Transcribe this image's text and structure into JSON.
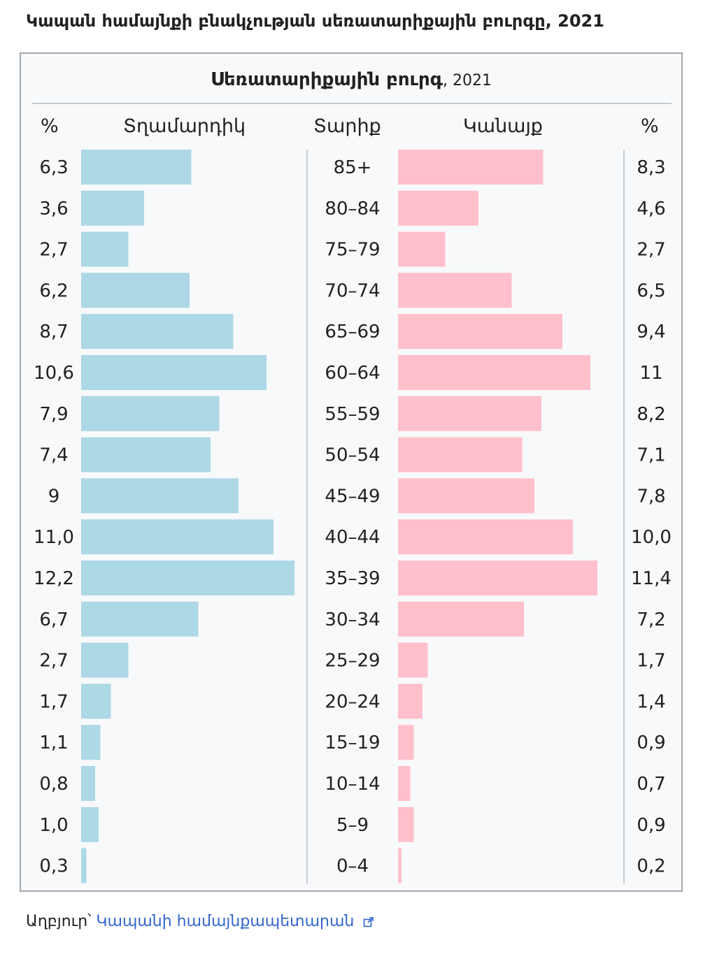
{
  "page": {
    "title": "Կապան համայնքի բնակչության սեռատարիքային բուրգը, 2021",
    "source_prefix": "Աղբյուր՝",
    "source_link": "Կապանի համայնքապետարան"
  },
  "colors": {
    "male": "#add8e6",
    "female": "#ffc0cb",
    "divider": "#c8ccd1",
    "border": "#a2a9b1",
    "link": "#3366cc"
  },
  "icons": {
    "external_link": "external-link-icon"
  },
  "chart_data": {
    "type": "bar",
    "subtype": "population-pyramid",
    "title": "Սեռատարիքային բուրգ",
    "year": ", 2021",
    "headers": {
      "male_pct": "%",
      "male": "Տղամարդիկ",
      "age": "Տարիք",
      "female": "Կանայք",
      "female_pct": "%"
    },
    "categories": [
      "85+",
      "80–84",
      "75–79",
      "70–74",
      "65–69",
      "60–64",
      "55–59",
      "50–54",
      "45–49",
      "40–44",
      "35–39",
      "30–34",
      "25–29",
      "20–24",
      "15–19",
      "10–14",
      "5–9",
      "0–4"
    ],
    "series": [
      {
        "name": "Տղամարդիկ",
        "values": [
          6.3,
          3.6,
          2.7,
          6.2,
          8.7,
          10.6,
          7.9,
          7.4,
          9,
          11.0,
          12.2,
          6.7,
          2.7,
          1.7,
          1.1,
          0.8,
          1.0,
          0.3
        ],
        "labels": [
          "6,3",
          "3,6",
          "2,7",
          "6,2",
          "8,7",
          "10,6",
          "7,9",
          "7,4",
          "9",
          "11,0",
          "12,2",
          "6,7",
          "2,7",
          "1,7",
          "1,1",
          "0,8",
          "1,0",
          "0,3"
        ]
      },
      {
        "name": "Կանայք",
        "values": [
          8.3,
          4.6,
          2.7,
          6.5,
          9.4,
          11,
          8.2,
          7.1,
          7.8,
          10.0,
          11.4,
          7.2,
          1.7,
          1.4,
          0.9,
          0.7,
          0.9,
          0.2
        ],
        "labels": [
          "8,3",
          "4,6",
          "2,7",
          "6,5",
          "9,4",
          "11",
          "8,2",
          "7,1",
          "7,8",
          "10,0",
          "11,4",
          "7,2",
          "1,7",
          "1,4",
          "0,9",
          "0,7",
          "0,9",
          "0,2"
        ]
      }
    ]
  }
}
